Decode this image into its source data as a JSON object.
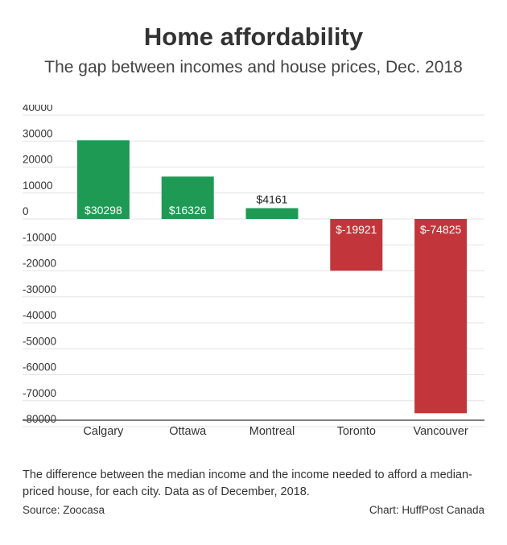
{
  "header": {
    "title": "Home affordability",
    "subtitle": "The gap between incomes and house prices, Dec. 2018"
  },
  "footer": {
    "note": "The difference between the median income and the income needed to afford a median-priced house, for each city. Data as of December, 2018.",
    "source": "Source: Zoocasa",
    "credit": "Chart: HuffPost Canada"
  },
  "chart_data": {
    "type": "bar",
    "title": "Home affordability",
    "subtitle": "The gap between incomes and house prices, Dec. 2018",
    "categories": [
      "Calgary",
      "Ottawa",
      "Montreal",
      "Toronto",
      "Vancouver"
    ],
    "values": [
      30298,
      16326,
      4161,
      -19921,
      -74825
    ],
    "data_labels": [
      "$30298",
      "$16326",
      "$4161",
      "$-19921",
      "$-74825"
    ],
    "yticks": [
      40000,
      30000,
      20000,
      10000,
      0,
      -10000,
      -20000,
      -30000,
      -40000,
      -50000,
      -60000,
      -70000,
      -80000
    ],
    "ylim": [
      -82000,
      40000
    ],
    "grid": true,
    "colors": {
      "positive": "#1f9a55",
      "negative": "#c2363b",
      "grid": "#e3e3e3",
      "axis": "#555555"
    }
  }
}
